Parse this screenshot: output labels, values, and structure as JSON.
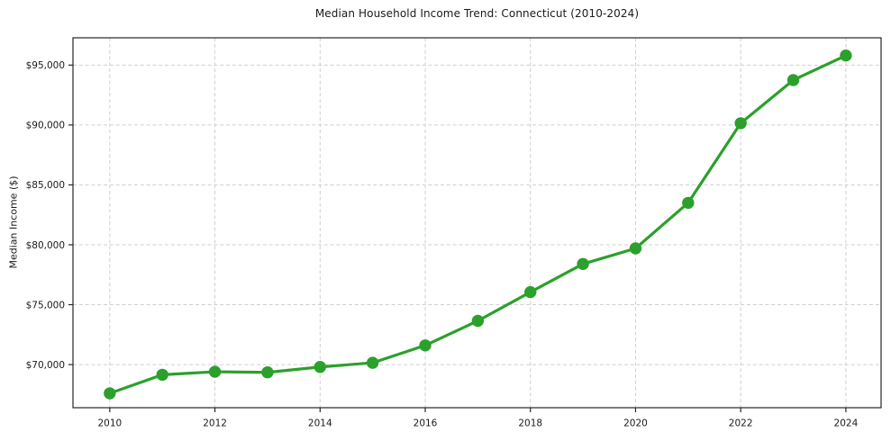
{
  "chart_data": {
    "type": "line",
    "title": "Median Household Income Trend: Connecticut (2010-2024)",
    "xlabel": "",
    "ylabel": "Median Income ($)",
    "x": [
      2010,
      2011,
      2012,
      2013,
      2014,
      2015,
      2016,
      2017,
      2018,
      2019,
      2020,
      2021,
      2022,
      2023,
      2024
    ],
    "values": [
      67600,
      69150,
      69400,
      69350,
      69800,
      70150,
      71600,
      73650,
      76050,
      78400,
      79700,
      83500,
      90150,
      93750,
      95800
    ],
    "x_ticks": [
      2010,
      2012,
      2014,
      2016,
      2018,
      2020,
      2022,
      2024
    ],
    "x_tick_labels": [
      "2010",
      "2012",
      "2014",
      "2016",
      "2018",
      "2020",
      "2022",
      "2024"
    ],
    "y_ticks": [
      70000,
      75000,
      80000,
      85000,
      90000,
      95000
    ],
    "y_tick_labels": [
      "$70,000",
      "$75,000",
      "$80,000",
      "$85,000",
      "$90,000",
      "$95,000"
    ],
    "xlim": [
      2009.3,
      2024.67
    ],
    "ylim": [
      66400,
      97280
    ],
    "grid": "dashed both axes",
    "legend": "none",
    "marker": "circle",
    "line_color": "#2ca02c",
    "marker_color": "#2ca02c"
  },
  "colors": {
    "background": "#ffffff",
    "grid": "#cfcfcf",
    "axis": "#262626",
    "text": "#1a1a1a"
  }
}
